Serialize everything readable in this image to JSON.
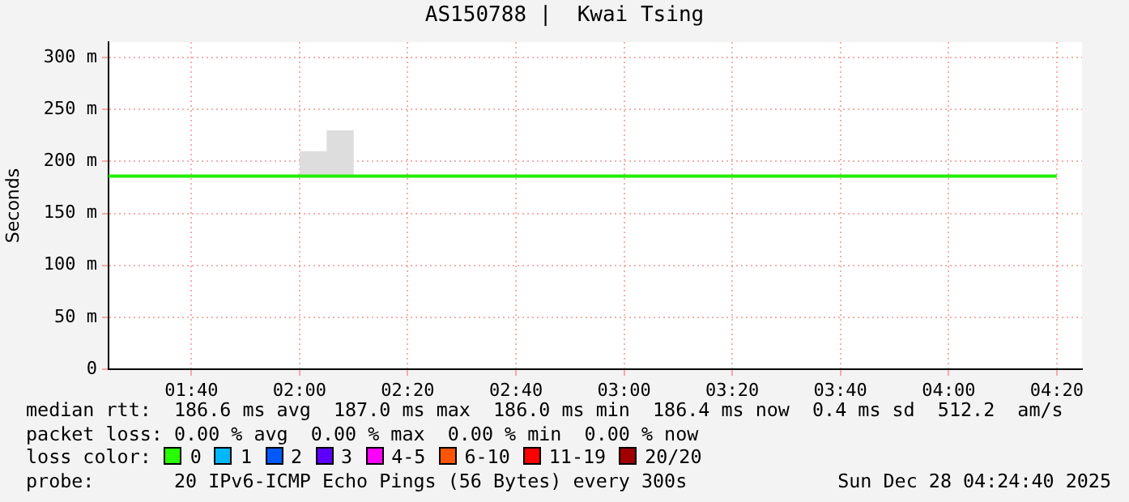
{
  "chart_data": {
    "type": "step",
    "title": "AS150788 |  Kwai Tsing",
    "ylabel": "Seconds",
    "xlim": [
      1.4111,
      4.4111
    ],
    "xticks": [
      {
        "value": 1.6667,
        "label": "01:40"
      },
      {
        "value": 2.0,
        "label": "02:00"
      },
      {
        "value": 2.3333,
        "label": "02:20"
      },
      {
        "value": 2.6667,
        "label": "02:40"
      },
      {
        "value": 3.0,
        "label": "03:00"
      },
      {
        "value": 3.3333,
        "label": "03:20"
      },
      {
        "value": 3.6667,
        "label": "03:40"
      },
      {
        "value": 4.0,
        "label": "04:00"
      },
      {
        "value": 4.3333,
        "label": "04:20"
      }
    ],
    "ylim": [
      0,
      315
    ],
    "yticks": [
      {
        "value": 0,
        "label": "0"
      },
      {
        "value": 50,
        "label": "50 m"
      },
      {
        "value": 100,
        "label": "100 m"
      },
      {
        "value": 150,
        "label": "150 m"
      },
      {
        "value": 200,
        "label": "200 m"
      },
      {
        "value": 250,
        "label": "250 m"
      },
      {
        "value": 300,
        "label": "300 m"
      }
    ],
    "grid": true,
    "legend": false,
    "marker": "none",
    "line_style": "solid",
    "series": [
      {
        "color": "#22ee00",
        "x": [
          1.4111,
          2.0,
          2.0833,
          2.0833,
          2.1667,
          4.3333
        ],
        "values": [
          186,
          186,
          186,
          186,
          186,
          186
        ],
        "lower": [
          null,
          186,
          186,
          186,
          186,
          null
        ],
        "upper": [
          null,
          210,
          210,
          230,
          230,
          null
        ]
      }
    ],
    "annotations": [
      "median rtt:  186.6 ms avg  187.0 ms max  186.0 ms min  186.4 ms now  0.4 ms sd  512.2  am/s",
      "packet loss: 0.00 % avg  0.00 % max  0.00 % min  0.00 % now",
      "loss color:",
      "0",
      "1",
      "2",
      "3",
      "4-5",
      "6-10",
      "11-19",
      "20/20",
      "probe:       20 IPv6-ICMP Echo Pings (56 Bytes) every 300s",
      "Sun Dec 28 04:24:40 2025"
    ]
  }
}
